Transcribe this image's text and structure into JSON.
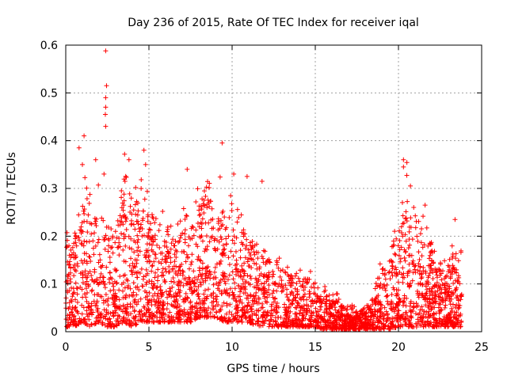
{
  "chart_data": {
    "type": "scatter",
    "title": "Day 236 of 2015, Rate Of TEC Index for receiver iqal",
    "xlabel": "GPS time / hours",
    "ylabel": "ROTI / TECUs",
    "xlim": [
      0,
      25
    ],
    "ylim": [
      0,
      0.6
    ],
    "xticks": [
      0,
      5,
      10,
      15,
      20,
      25
    ],
    "yticks": [
      0,
      0.1,
      0.2,
      0.3,
      0.4,
      0.5,
      0.6
    ],
    "xtick_labels": [
      "0",
      "5",
      "10",
      "15",
      "20",
      "25"
    ],
    "ytick_labels": [
      "0",
      "0.1",
      "0.2",
      "0.3",
      "0.4",
      "0.5",
      "0.6"
    ],
    "grid": true,
    "marker": "+",
    "color": "#ff0000",
    "series": [
      {
        "name": "ROTI",
        "note": "dense point cloud summarized as a per-hour envelope plus notable outliers",
        "envelope_hours": [
          0,
          0.5,
          1,
          1.5,
          2,
          2.5,
          3,
          3.5,
          4,
          4.5,
          5,
          5.5,
          6,
          6.5,
          7,
          7.5,
          8,
          8.5,
          9,
          9.5,
          10,
          10.5,
          11,
          11.5,
          12,
          12.5,
          13,
          13.5,
          14,
          14.5,
          15,
          15.5,
          16,
          16.5,
          17,
          17.5,
          18,
          18.5,
          19,
          19.5,
          20,
          20.5,
          21,
          21.5,
          22,
          22.5,
          23,
          23.5,
          23.8
        ],
        "envelope_upper": [
          0.2,
          0.17,
          0.3,
          0.28,
          0.3,
          0.2,
          0.23,
          0.34,
          0.28,
          0.3,
          0.27,
          0.22,
          0.24,
          0.19,
          0.25,
          0.26,
          0.28,
          0.32,
          0.3,
          0.28,
          0.29,
          0.22,
          0.2,
          0.18,
          0.17,
          0.16,
          0.14,
          0.13,
          0.14,
          0.12,
          0.11,
          0.09,
          0.08,
          0.07,
          0.05,
          0.05,
          0.05,
          0.07,
          0.15,
          0.17,
          0.2,
          0.33,
          0.27,
          0.24,
          0.17,
          0.15,
          0.13,
          0.2,
          0.16
        ],
        "envelope_lower": [
          0.01,
          0.01,
          0.02,
          0.01,
          0.02,
          0.01,
          0.01,
          0.02,
          0.01,
          0.02,
          0.02,
          0.02,
          0.02,
          0.02,
          0.02,
          0.02,
          0.03,
          0.03,
          0.03,
          0.02,
          0.02,
          0.02,
          0.02,
          0.01,
          0.01,
          0.01,
          0.01,
          0.01,
          0.01,
          0.01,
          0.01,
          0.005,
          0.005,
          0.005,
          0.005,
          0.005,
          0.005,
          0.005,
          0.005,
          0.005,
          0.01,
          0.01,
          0.01,
          0.01,
          0.01,
          0.01,
          0.01,
          0.01,
          0.01
        ],
        "outliers": [
          {
            "x": 0.8,
            "y": 0.385
          },
          {
            "x": 1.1,
            "y": 0.41
          },
          {
            "x": 1.0,
            "y": 0.35
          },
          {
            "x": 1.8,
            "y": 0.36
          },
          {
            "x": 2.3,
            "y": 0.33
          },
          {
            "x": 2.4,
            "y": 0.588
          },
          {
            "x": 2.45,
            "y": 0.515
          },
          {
            "x": 2.4,
            "y": 0.49
          },
          {
            "x": 2.4,
            "y": 0.47
          },
          {
            "x": 2.38,
            "y": 0.455
          },
          {
            "x": 2.4,
            "y": 0.43
          },
          {
            "x": 3.8,
            "y": 0.36
          },
          {
            "x": 4.7,
            "y": 0.38
          },
          {
            "x": 4.8,
            "y": 0.35
          },
          {
            "x": 7.3,
            "y": 0.34
          },
          {
            "x": 9.4,
            "y": 0.395
          },
          {
            "x": 10.1,
            "y": 0.33
          },
          {
            "x": 10.9,
            "y": 0.325
          },
          {
            "x": 11.8,
            "y": 0.315
          },
          {
            "x": 20.3,
            "y": 0.36
          },
          {
            "x": 20.3,
            "y": 0.345
          },
          {
            "x": 21.6,
            "y": 0.265
          },
          {
            "x": 23.4,
            "y": 0.235
          }
        ]
      }
    ]
  }
}
